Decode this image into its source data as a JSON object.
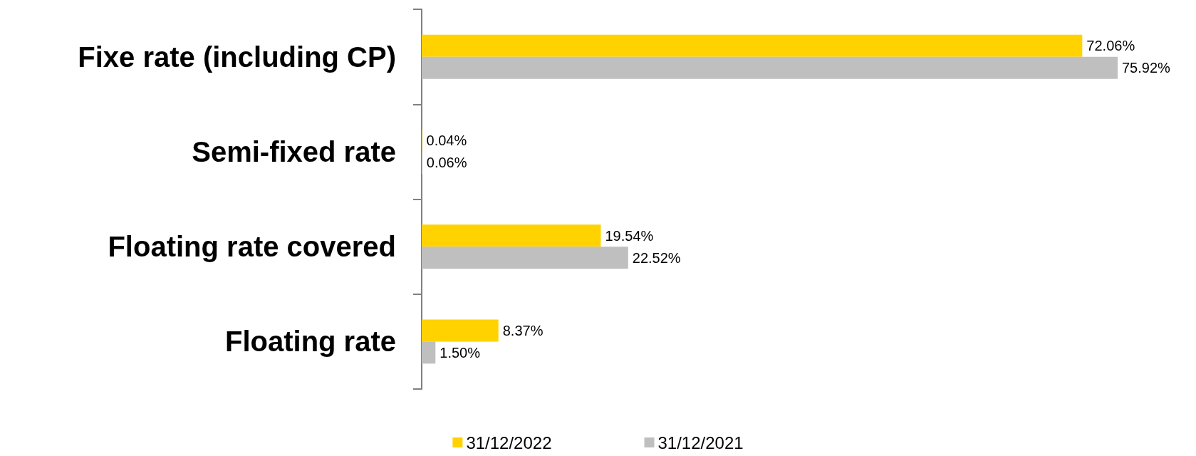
{
  "chart_data": {
    "type": "bar",
    "orientation": "horizontal",
    "categories": [
      "Fixe rate (including CP)",
      "Semi-fixed rate",
      "Floating rate covered",
      "Floating rate"
    ],
    "series": [
      {
        "name": "31/12/2022",
        "color": "#ffd200",
        "values": [
          72.06,
          0.04,
          19.54,
          8.37
        ],
        "value_labels": [
          "72.06%",
          "0.04%",
          "19.54%",
          "8.37%"
        ]
      },
      {
        "name": "31/12/2021",
        "color": "#bfbfbf",
        "values": [
          75.92,
          0.06,
          22.52,
          1.5
        ],
        "value_labels": [
          "75.92%",
          "0.06%",
          "22.52%",
          "1.50%"
        ]
      }
    ],
    "legend": "bottom"
  }
}
